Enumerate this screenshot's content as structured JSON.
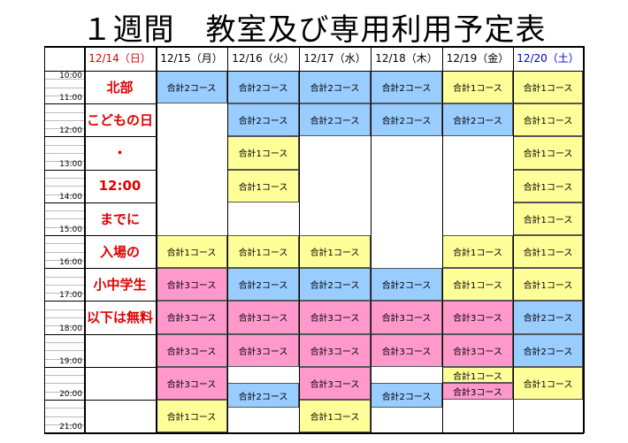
{
  "title": "１週間　教室及び専用利用予定表",
  "colors": {
    "blue": "#99ccff",
    "yellow": "#ffff99",
    "pink": "#ff99cc",
    "sunday": "#e00000",
    "saturday": "#0000cc"
  },
  "days": [
    {
      "label": "12/14（日）",
      "color": "#e00000"
    },
    {
      "label": "12/15（月）",
      "color": "#000000"
    },
    {
      "label": "12/16（火）",
      "color": "#000000"
    },
    {
      "label": "12/17（水）",
      "color": "#000000"
    },
    {
      "label": "12/18（木）",
      "color": "#000000"
    },
    {
      "label": "12/19（金）",
      "color": "#000000"
    },
    {
      "label": "12/20（土）",
      "color": "#0000cc"
    }
  ],
  "times": [
    "10:00",
    "11:00",
    "12:00",
    "13:00",
    "14:00",
    "15:00",
    "16:00",
    "17:00",
    "18:00",
    "19:00",
    "20:00",
    "21:00"
  ],
  "sunday_notes": [
    "北部",
    "こどもの日",
    "・",
    "12:00",
    "までに",
    "入場の",
    "小中学生",
    "以下は無料"
  ],
  "bookings": [
    {
      "day": 1,
      "start": 10,
      "end": 11,
      "color": "blue",
      "label": "合計2コース"
    },
    {
      "day": 2,
      "start": 10,
      "end": 11,
      "color": "blue",
      "label": "合計2コース"
    },
    {
      "day": 3,
      "start": 10,
      "end": 11,
      "color": "blue",
      "label": "合計2コース"
    },
    {
      "day": 4,
      "start": 10,
      "end": 11,
      "color": "blue",
      "label": "合計2コース"
    },
    {
      "day": 5,
      "start": 10,
      "end": 11,
      "color": "yellow",
      "label": "合計1コース"
    },
    {
      "day": 6,
      "start": 10,
      "end": 11,
      "color": "yellow",
      "label": "合計1コース"
    },
    {
      "day": 2,
      "start": 11,
      "end": 12,
      "color": "blue",
      "label": "合計2コース"
    },
    {
      "day": 3,
      "start": 11,
      "end": 12,
      "color": "blue",
      "label": "合計2コース"
    },
    {
      "day": 4,
      "start": 11,
      "end": 12,
      "color": "blue",
      "label": "合計2コース"
    },
    {
      "day": 5,
      "start": 11,
      "end": 12,
      "color": "blue",
      "label": "合計2コース"
    },
    {
      "day": 6,
      "start": 11,
      "end": 12,
      "color": "yellow",
      "label": "合計1コース"
    },
    {
      "day": 2,
      "start": 12,
      "end": 13,
      "color": "yellow",
      "label": "合計1コース"
    },
    {
      "day": 6,
      "start": 12,
      "end": 13,
      "color": "yellow",
      "label": "合計1コース"
    },
    {
      "day": 2,
      "start": 13,
      "end": 14,
      "color": "yellow",
      "label": "合計1コース"
    },
    {
      "day": 6,
      "start": 13,
      "end": 14,
      "color": "yellow",
      "label": "合計1コース"
    },
    {
      "day": 6,
      "start": 14,
      "end": 15,
      "color": "yellow",
      "label": "合計1コース"
    },
    {
      "day": 1,
      "start": 15,
      "end": 16,
      "color": "yellow",
      "label": "合計1コース"
    },
    {
      "day": 2,
      "start": 15,
      "end": 16,
      "color": "yellow",
      "label": "合計1コース"
    },
    {
      "day": 3,
      "start": 15,
      "end": 16,
      "color": "yellow",
      "label": "合計1コース"
    },
    {
      "day": 5,
      "start": 15,
      "end": 16,
      "color": "yellow",
      "label": "合計1コース"
    },
    {
      "day": 6,
      "start": 15,
      "end": 16,
      "color": "yellow",
      "label": "合計1コース"
    },
    {
      "day": 1,
      "start": 16,
      "end": 17,
      "color": "pink",
      "label": "合計3コース"
    },
    {
      "day": 2,
      "start": 16,
      "end": 17,
      "color": "blue",
      "label": "合計2コース"
    },
    {
      "day": 3,
      "start": 16,
      "end": 17,
      "color": "blue",
      "label": "合計2コース"
    },
    {
      "day": 4,
      "start": 16,
      "end": 17,
      "color": "blue",
      "label": "合計2コース"
    },
    {
      "day": 5,
      "start": 16,
      "end": 17,
      "color": "yellow",
      "label": "合計1コース"
    },
    {
      "day": 6,
      "start": 16,
      "end": 17,
      "color": "yellow",
      "label": "合計1コース"
    },
    {
      "day": 1,
      "start": 17,
      "end": 18,
      "color": "pink",
      "label": "合計3コース"
    },
    {
      "day": 2,
      "start": 17,
      "end": 18,
      "color": "pink",
      "label": "合計3コース"
    },
    {
      "day": 3,
      "start": 17,
      "end": 18,
      "color": "pink",
      "label": "合計3コース"
    },
    {
      "day": 4,
      "start": 17,
      "end": 18,
      "color": "pink",
      "label": "合計3コース"
    },
    {
      "day": 5,
      "start": 17,
      "end": 18,
      "color": "pink",
      "label": "合計3コース"
    },
    {
      "day": 6,
      "start": 17,
      "end": 18,
      "color": "blue",
      "label": "合計2コース"
    },
    {
      "day": 1,
      "start": 18,
      "end": 19,
      "color": "pink",
      "label": "合計3コース"
    },
    {
      "day": 2,
      "start": 18,
      "end": 19,
      "color": "pink",
      "label": "合計3コース"
    },
    {
      "day": 3,
      "start": 18,
      "end": 19,
      "color": "pink",
      "label": "合計3コース"
    },
    {
      "day": 4,
      "start": 18,
      "end": 19,
      "color": "pink",
      "label": "合計3コース"
    },
    {
      "day": 5,
      "start": 18,
      "end": 19,
      "color": "pink",
      "label": "合計3コース"
    },
    {
      "day": 6,
      "start": 18,
      "end": 19,
      "color": "blue",
      "label": "合計2コース"
    },
    {
      "day": 1,
      "start": 19,
      "end": 20,
      "color": "pink",
      "label": "合計3コース"
    },
    {
      "day": 2,
      "start": 19.5,
      "end": 20.25,
      "color": "blue",
      "label": "合計2コース"
    },
    {
      "day": 3,
      "start": 19,
      "end": 20,
      "color": "pink",
      "label": "合計3コース"
    },
    {
      "day": 4,
      "start": 19.5,
      "end": 20.25,
      "color": "blue",
      "label": "合計2コース"
    },
    {
      "day": 5,
      "start": 19,
      "end": 19.5,
      "color": "yellow",
      "label": "合計1コース"
    },
    {
      "day": 5,
      "start": 19.5,
      "end": 20,
      "color": "pink",
      "label": "合計3コース"
    },
    {
      "day": 6,
      "start": 19,
      "end": 20,
      "color": "yellow",
      "label": "合計1コース"
    },
    {
      "day": 1,
      "start": 20,
      "end": 21,
      "color": "yellow",
      "label": "合計1コース"
    },
    {
      "day": 3,
      "start": 20,
      "end": 21,
      "color": "yellow",
      "label": "合計1コース"
    }
  ]
}
